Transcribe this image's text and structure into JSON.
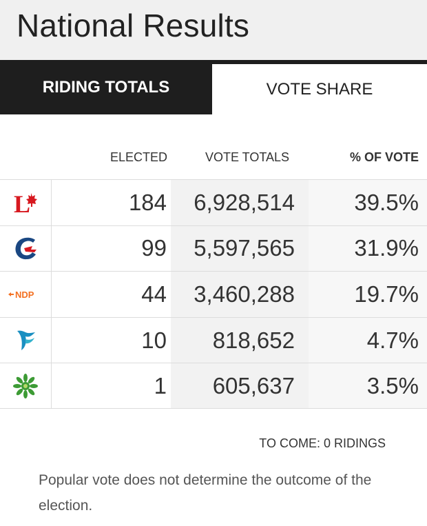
{
  "header": {
    "title": "National Results"
  },
  "tabs": [
    {
      "label": "RIDING TOTALS",
      "active": true
    },
    {
      "label": "VOTE SHARE",
      "active": false
    }
  ],
  "columns": {
    "elected": "ELECTED",
    "vote_totals": "VOTE TOTALS",
    "pct_vote": "% OF VOTE"
  },
  "parties": [
    {
      "logo": "liberal-logo",
      "color": "#d71920",
      "elected": "184",
      "votes": "6,928,514",
      "pct": "39.5%"
    },
    {
      "logo": "conservative-logo",
      "color": "#1a4782",
      "elected": "99",
      "votes": "5,597,565",
      "pct": "31.9%"
    },
    {
      "logo": "ndp-logo",
      "color": "#f37021",
      "text": "NDP",
      "elected": "44",
      "votes": "3,460,288",
      "pct": "19.7%"
    },
    {
      "logo": "bloc-logo",
      "color": "#33b2cc",
      "elected": "10",
      "votes": "818,652",
      "pct": "4.7%"
    },
    {
      "logo": "green-logo",
      "color": "#3d9b35",
      "elected": "1",
      "votes": "605,637",
      "pct": "3.5%"
    }
  ],
  "footer": {
    "to_come_label": "TO COME: ",
    "to_come_value": "0 RIDINGS",
    "note": "Popular vote does not determine the outcome of the election."
  }
}
